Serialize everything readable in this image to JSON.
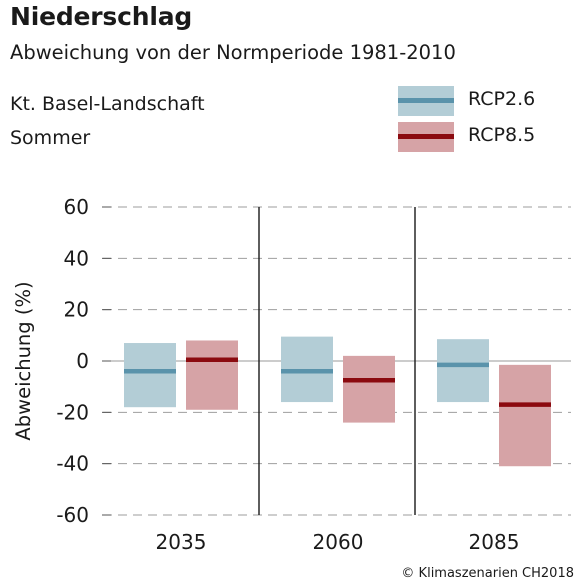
{
  "header": {
    "title": "Niederschlag",
    "subtitle": "Abweichung von der Normperiode 1981-2010",
    "region": "Kt. Basel-Landschaft",
    "season": "Sommer"
  },
  "legend": {
    "items": [
      {
        "label": "RCP2.6",
        "box_color": "#b3cdd6",
        "line_color": "#5a93ab"
      },
      {
        "label": "RCP8.5",
        "box_color": "#d6a3a6",
        "line_color": "#8b0a0f"
      }
    ]
  },
  "copyright": "© Klimaszenarien CH2018",
  "chart_data": {
    "type": "box-range",
    "ylabel": "Abweichung (%)",
    "ylim": [
      -60,
      60
    ],
    "yticks": [
      60,
      40,
      20,
      0,
      -20,
      -40,
      -60
    ],
    "grid": "dashed horizontal",
    "categories": [
      "2035",
      "2060",
      "2085"
    ],
    "series": [
      {
        "name": "RCP2.6",
        "box_color": "#b3cdd6",
        "line_color": "#5a93ab",
        "low": [
          -18,
          -16,
          -16
        ],
        "median": [
          -4,
          -4,
          -1.5
        ],
        "high": [
          7,
          9.5,
          8.5
        ]
      },
      {
        "name": "RCP8.5",
        "box_color": "#d6a3a6",
        "line_color": "#8b0a0f",
        "low": [
          -19,
          -24,
          -41
        ],
        "median": [
          0.5,
          -7.5,
          -17
        ],
        "high": [
          8,
          2,
          -1.5
        ]
      }
    ]
  }
}
